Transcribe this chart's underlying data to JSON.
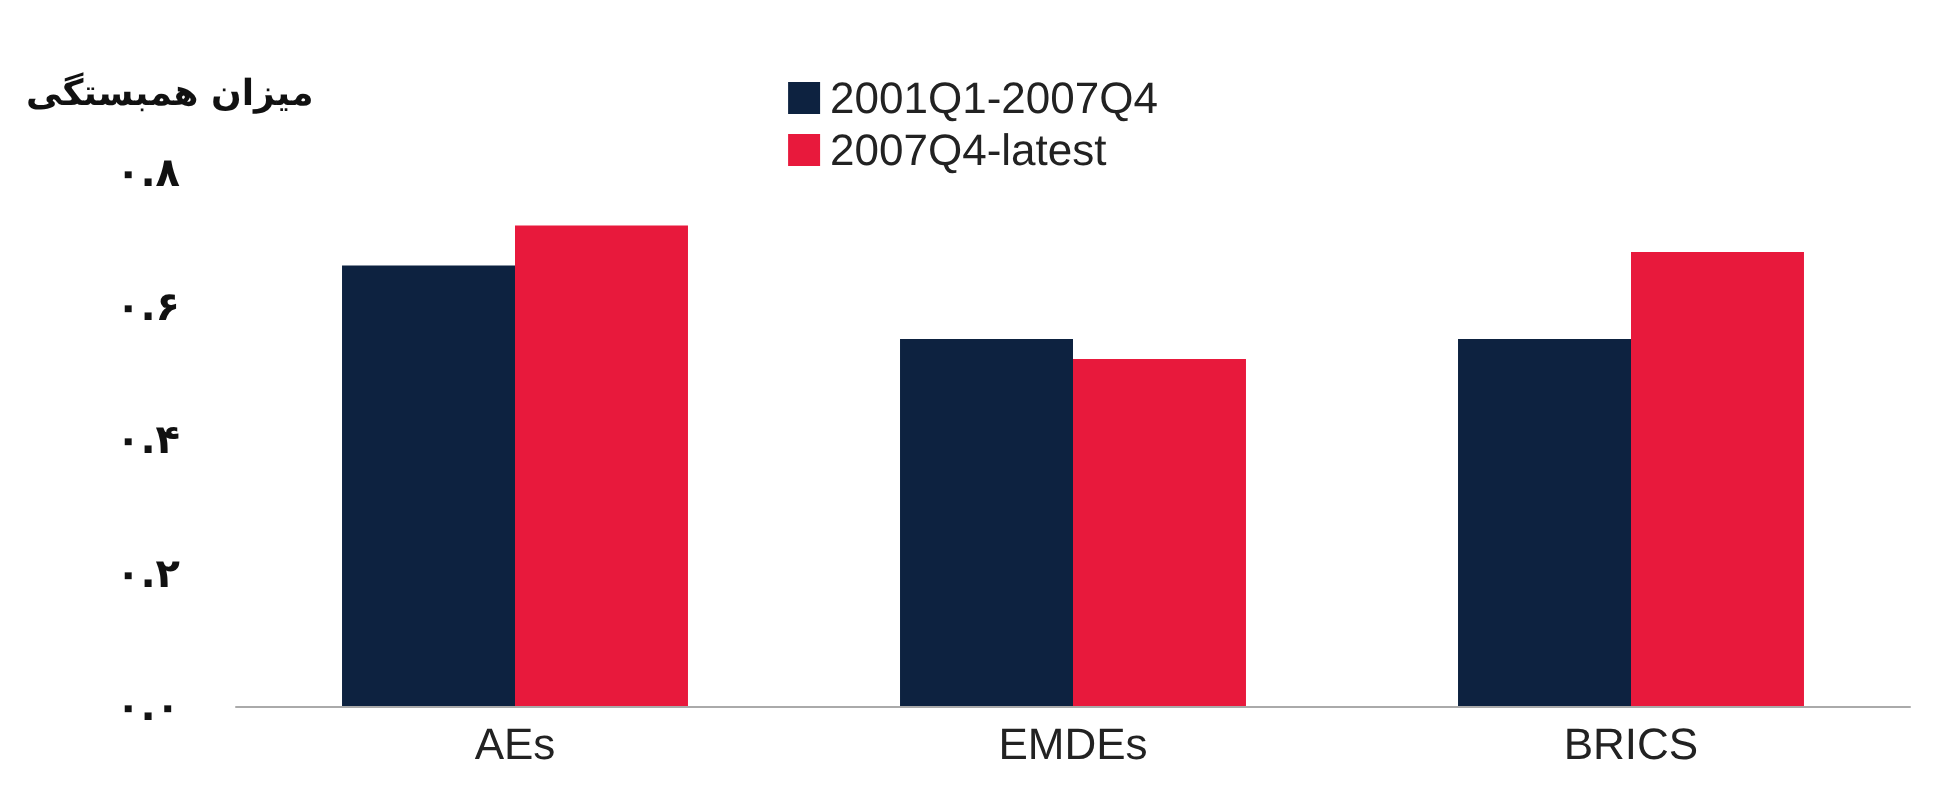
{
  "chart_data": {
    "type": "bar",
    "ylabel": "میزان همبستگی",
    "categories": [
      "AEs",
      "EMDEs",
      "BRICS"
    ],
    "series": [
      {
        "name": "2001Q1-2007Q4",
        "color": "#0d2240",
        "values": [
          0.66,
          0.55,
          0.55
        ]
      },
      {
        "name": "2007Q4-latest",
        "color": "#e8193c",
        "values": [
          0.72,
          0.52,
          0.68
        ]
      }
    ],
    "ylim": [
      0,
      0.8
    ],
    "yticks": [
      {
        "value": 0,
        "label": "۰.۰"
      },
      {
        "value": 0.2,
        "label": "۰.۲"
      },
      {
        "value": 0.4,
        "label": "۰.۴"
      },
      {
        "value": 0.6,
        "label": "۰.۶"
      },
      {
        "value": 0.8,
        "label": "۰.۸"
      }
    ],
    "grid": false,
    "legend": "top"
  }
}
